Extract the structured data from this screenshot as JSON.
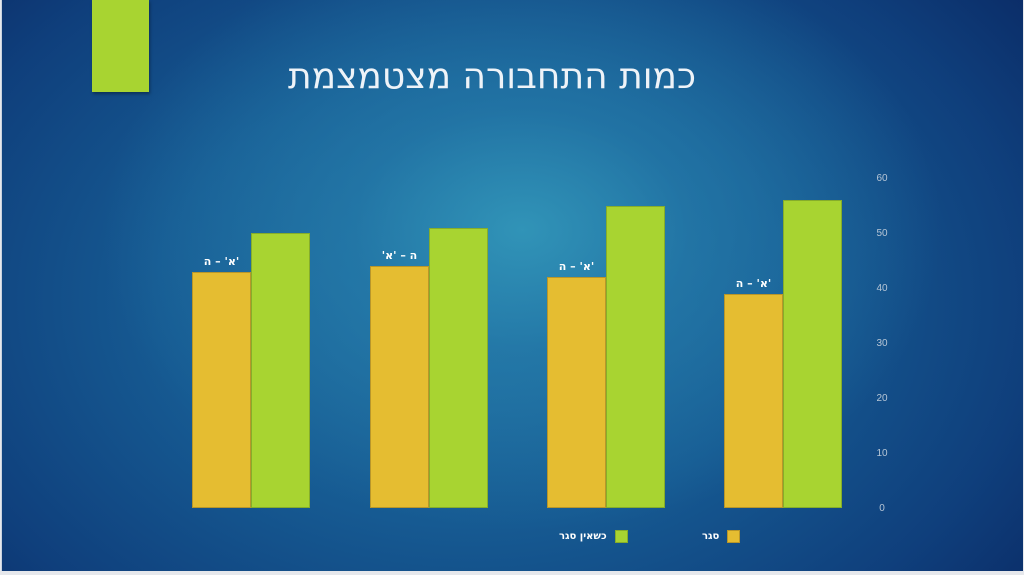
{
  "slide": {
    "title": "כמות התחבורה מצטמצמת",
    "accent_color": "#a8d431"
  },
  "chart_data": {
    "type": "bar",
    "title": "כמות התחבורה מצטמצמת",
    "categories": [
      "א' – ה'",
      "'ה – 'א",
      "א' – ה'",
      "א' – ה'"
    ],
    "series": [
      {
        "name": "סגר",
        "color": "#e5bd31",
        "values": [
          43,
          44,
          42,
          39
        ]
      },
      {
        "name": "כשאין סגר",
        "color": "#a8d431",
        "values": [
          50,
          51,
          55,
          56
        ]
      }
    ],
    "xlabel": "",
    "ylabel": "",
    "ylim": [
      0,
      60
    ],
    "yticks": [
      "60",
      "50",
      "40",
      "30",
      "20",
      "10",
      "0"
    ],
    "y_axis_position": "right",
    "grid": false,
    "legend_position": "bottom"
  },
  "legend": {
    "items": [
      {
        "label": "סגר",
        "color": "#e5bd31"
      },
      {
        "label": "כשאין סגר",
        "color": "#a8d431"
      }
    ]
  }
}
